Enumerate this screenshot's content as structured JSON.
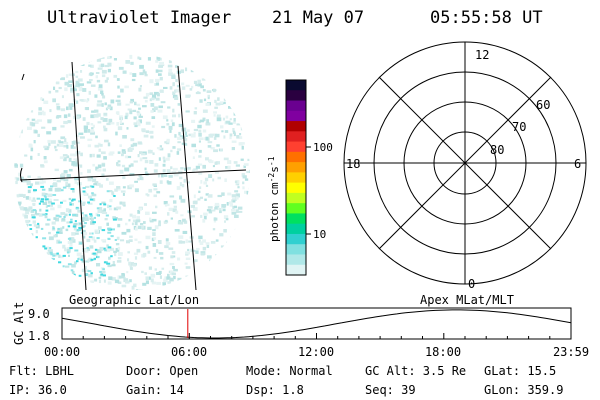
{
  "header": {
    "title": "Ultraviolet Imager",
    "date": "21 May 07",
    "time": "05:55:58 UT"
  },
  "colorbar": {
    "label": "photon cm^-2 s^-1",
    "ticks": [
      "100",
      "10"
    ],
    "colors": [
      "#0a0a30",
      "#2a0040",
      "#6a0090",
      "#8000a0",
      "#b00000",
      "#e02020",
      "#ff4030",
      "#ff7000",
      "#ffa000",
      "#ffd000",
      "#ffff00",
      "#c0ff20",
      "#60ff20",
      "#00e060",
      "#00d0a0",
      "#30d0d0",
      "#80e0e0",
      "#b0e8e8",
      "#e0f4f4"
    ]
  },
  "polar": {
    "mlt_labels": [
      "12",
      "6",
      "0",
      "18"
    ],
    "lat_labels": [
      "60",
      "70",
      "80"
    ]
  },
  "timeline": {
    "ylabel": "GC Alt",
    "ymax_label": "9.0",
    "ymin_label": "1.8",
    "left_label": "Geographic Lat/Lon",
    "right_label": "Apex MLat/MLT",
    "ticks": [
      "00:00",
      "06:00",
      "12:00",
      "18:00",
      "23:59"
    ],
    "marker_time": "05:55:58"
  },
  "info": {
    "row1": {
      "flt": "Flt: LBHL",
      "door": "Door: Open",
      "mode": "Mode: Normal",
      "gcalt": "GC Alt: 3.5 Re",
      "glat": "GLat:  15.5"
    },
    "row2": {
      "ip": "IP: 36.0",
      "gain": "Gain: 14",
      "dsp": "Dsp:    1.8",
      "seq": "Seq: 39",
      "glon": "GLon: 359.9"
    }
  }
}
